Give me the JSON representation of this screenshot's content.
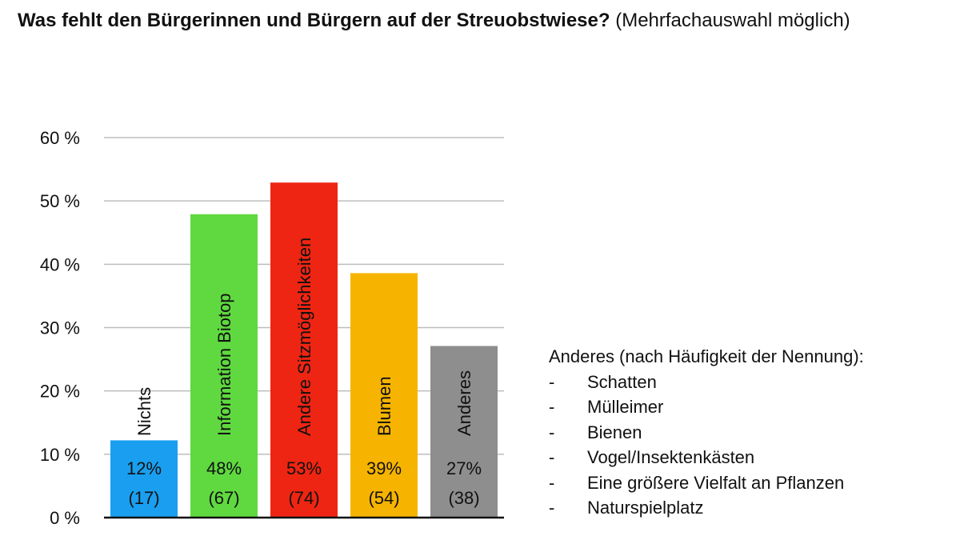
{
  "title": {
    "bold": "Was fehlt den Bürgerinnen und Bürgern auf der Streuobstwiese?",
    "normal": "(Mehrfachauswahl möglich)"
  },
  "chart_data": {
    "type": "bar",
    "categories": [
      "Nichts",
      "Information Biotop",
      "Andere Sitzmöglichkeiten",
      "Blumen",
      "Anderes"
    ],
    "values": [
      12.2,
      47.9,
      52.9,
      38.6,
      27.1
    ],
    "percent_labels": [
      "12%",
      "48%",
      "53%",
      "39%",
      "27%"
    ],
    "count_labels": [
      "(17)",
      "(67)",
      "(74)",
      "(54)",
      "(38)"
    ],
    "colors": [
      "#1a9ff0",
      "#5fd93f",
      "#ee2512",
      "#f6b400",
      "#8e8e8e"
    ],
    "yticks": [
      "0 %",
      "10 %",
      "20 %",
      "30 %",
      "40 %",
      "50 %",
      "60 %"
    ],
    "ylim": [
      0,
      60
    ],
    "grid": true,
    "legend": "none"
  },
  "notes": {
    "heading": "Anderes (nach Häufigkeit der Nennung):",
    "bullet": "-",
    "items": [
      "Schatten",
      "Mülleimer",
      "Bienen",
      "Vogel/Insektenkästen",
      "Eine größere Vielfalt an Pflanzen",
      "Naturspielplatz"
    ]
  }
}
